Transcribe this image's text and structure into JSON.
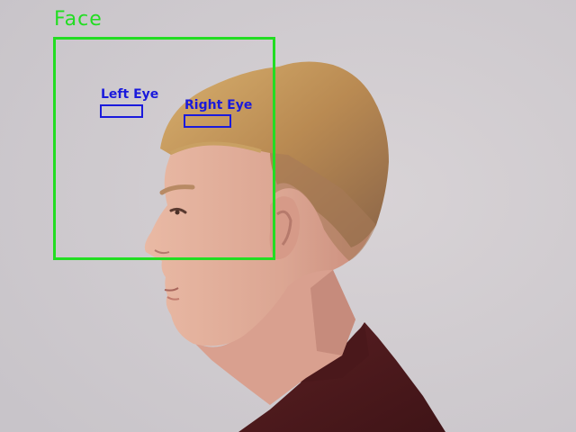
{
  "colors": {
    "face_detection": "#22dd22",
    "eye_detection": "#1a1adc"
  },
  "detections": {
    "face": {
      "label": "Face"
    },
    "left_eye": {
      "label": "Left Eye"
    },
    "right_eye": {
      "label": "Right Eye"
    }
  }
}
